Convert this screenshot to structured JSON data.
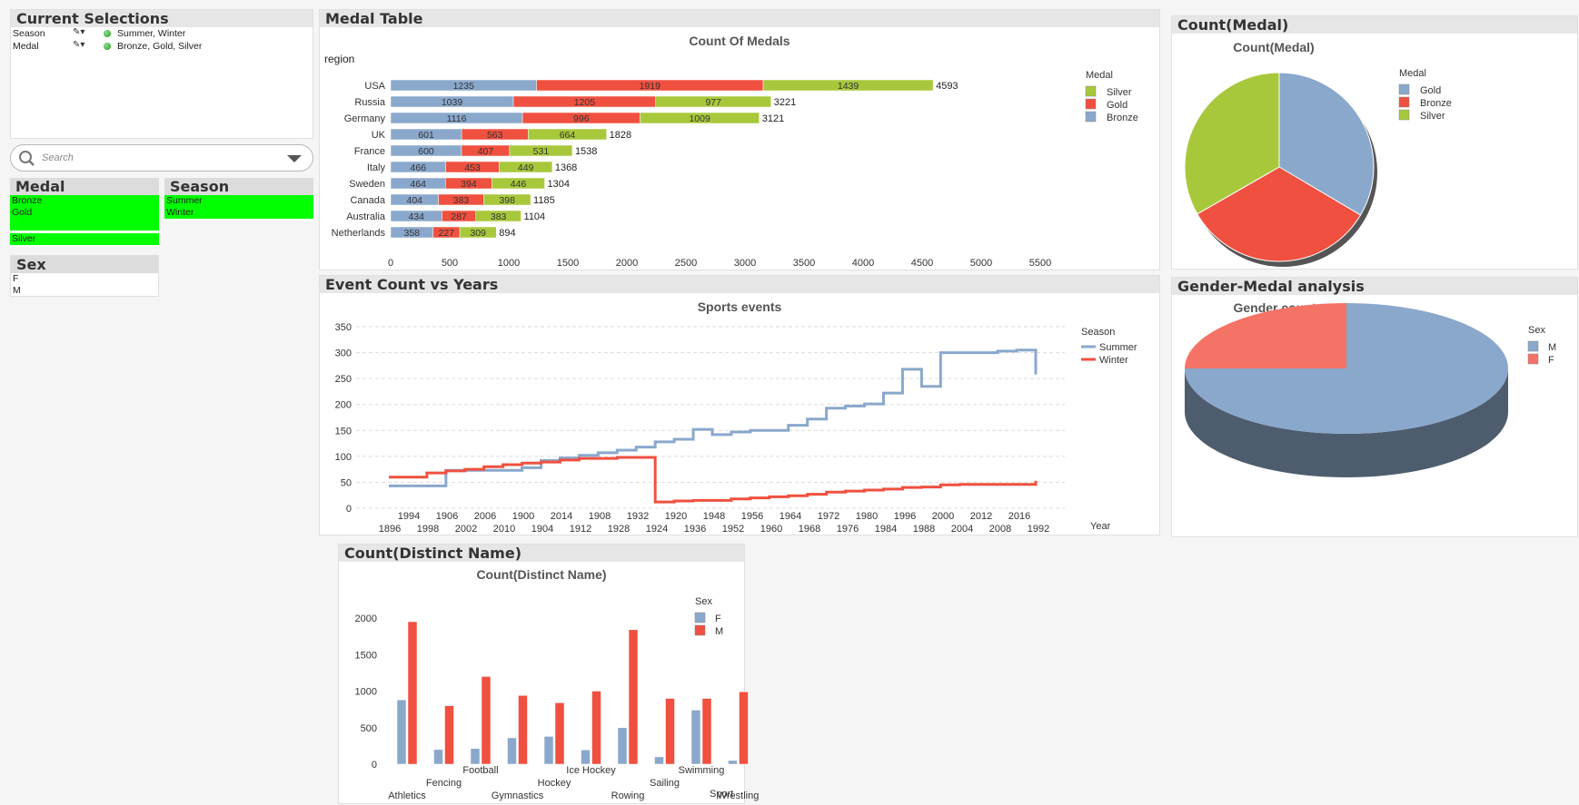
{
  "current_selections": {
    "title": "Current Selections",
    "rows": [
      {
        "field": "Season",
        "value": "Summer, Winter"
      },
      {
        "field": "Medal",
        "value": "Bronze, Gold, Silver"
      }
    ]
  },
  "search": {
    "placeholder": "Search",
    "icon": "magnifier-icon"
  },
  "listboxes": {
    "medal": {
      "title": "Medal",
      "items": [
        "Bronze",
        "Gold",
        "",
        "Silver"
      ],
      "selected": [
        true,
        true,
        false,
        true
      ]
    },
    "season": {
      "title": "Season",
      "items": [
        "Summer",
        "Winter"
      ],
      "selected": [
        true,
        true
      ]
    },
    "sex": {
      "title": "Sex",
      "items": [
        "F",
        "M"
      ],
      "selected": [
        false,
        false
      ]
    }
  },
  "colors": {
    "blue": "#8aa8cc",
    "red": "#f0503f",
    "green": "#a8c83c",
    "selection": "#00ff00"
  },
  "panels": {
    "medal_table": "Medal Table",
    "event_count": "Event Count vs Years",
    "count_medal": "Count(Medal)",
    "gender_medal": "Gender-Medal analysis",
    "distinct_name": "Count(Distinct Name)"
  },
  "chart_data": [
    {
      "id": "medals",
      "type": "bar",
      "orientation": "horizontal",
      "stacked": true,
      "title": "Count Of Medals",
      "dimension_label": "region",
      "categories": [
        "USA",
        "Russia",
        "Germany",
        "UK",
        "France",
        "Italy",
        "Sweden",
        "Canada",
        "Australia",
        "Netherlands"
      ],
      "series": [
        {
          "name": "Bronze",
          "values": [
            1235,
            1039,
            1116,
            601,
            600,
            466,
            464,
            404,
            434,
            358
          ]
        },
        {
          "name": "Gold",
          "values": [
            1919,
            1205,
            996,
            563,
            407,
            453,
            394,
            383,
            287,
            227
          ]
        },
        {
          "name": "Silver",
          "values": [
            1439,
            977,
            1009,
            664,
            531,
            449,
            446,
            398,
            383,
            309
          ]
        }
      ],
      "totals": [
        4593,
        3221,
        3121,
        1828,
        1538,
        1368,
        1304,
        1185,
        1104,
        894
      ],
      "xlim": [
        0,
        5500
      ],
      "xticks": [
        0,
        500,
        1000,
        1500,
        2000,
        2500,
        3000,
        3500,
        4000,
        4500,
        5000,
        5500
      ],
      "legend_title": "Medal",
      "legend": [
        "Silver",
        "Gold",
        "Bronze"
      ],
      "legend_position": "right"
    },
    {
      "id": "events",
      "type": "line",
      "title": "Sports events",
      "xlabel": "Year",
      "x_tick_labels_upper": [
        "1994",
        "1906",
        "2006",
        "1900",
        "2014",
        "1908",
        "1932",
        "1920",
        "1948",
        "1956",
        "1964",
        "1972",
        "1980",
        "1996",
        "2000",
        "2012",
        "2016"
      ],
      "x_tick_labels_lower": [
        "1896",
        "1998",
        "2002",
        "2010",
        "1904",
        "1912",
        "1928",
        "1924",
        "1936",
        "1952",
        "1960",
        "1968",
        "1976",
        "1984",
        "1988",
        "2004",
        "2008",
        "1992"
      ],
      "ylim": [
        0,
        350
      ],
      "yticks": [
        0,
        50,
        100,
        150,
        200,
        250,
        300,
        350
      ],
      "grid": true,
      "legend_title": "Season",
      "legend_position": "right",
      "series": [
        {
          "name": "Summer",
          "values": [
            43,
            43,
            43,
            73,
            73,
            73,
            73,
            78,
            92,
            97,
            102,
            107,
            112,
            118,
            128,
            133,
            152,
            142,
            147,
            150,
            150,
            160,
            172,
            193,
            197,
            201,
            222,
            268,
            235,
            300,
            300,
            300,
            303,
            305,
            258
          ]
        },
        {
          "name": "Winter",
          "values": [
            60,
            60,
            68,
            72,
            75,
            80,
            84,
            87,
            89,
            93,
            96,
            96,
            98,
            98,
            12,
            14,
            15,
            15,
            18,
            20,
            22,
            24,
            27,
            31,
            33,
            35,
            37,
            40,
            41,
            45,
            46,
            46,
            46,
            46,
            53
          ]
        }
      ]
    },
    {
      "id": "count_medal",
      "type": "pie",
      "title": "Count(Medal)",
      "legend_title": "Medal",
      "legend": [
        "Gold",
        "Bronze",
        "Silver"
      ],
      "legend_position": "right",
      "values": [
        33.5,
        33.2,
        33.3
      ]
    },
    {
      "id": "gender",
      "type": "pie",
      "title": "Gender count",
      "legend_title": "Sex",
      "legend": [
        "M",
        "F"
      ],
      "legend_position": "right",
      "values": [
        75,
        25
      ]
    },
    {
      "id": "distinct",
      "type": "bar",
      "title": "Count(Distinct Name)",
      "xlabel": "Sport",
      "legend_title": "Sex",
      "legend_position": "right",
      "categories": [
        "Athletics",
        "Fencing",
        "Football",
        "Gymnastics",
        "Hockey",
        "Ice Hockey",
        "Rowing",
        "Sailing",
        "Swimming",
        "Wrestling"
      ],
      "series": [
        {
          "name": "F",
          "values": [
            880,
            200,
            215,
            360,
            380,
            195,
            500,
            100,
            740,
            50
          ]
        },
        {
          "name": "M",
          "values": [
            1950,
            800,
            1200,
            940,
            840,
            1000,
            1840,
            900,
            900,
            990
          ]
        }
      ],
      "ylim": [
        0,
        2200
      ],
      "yticks": [
        0,
        500,
        1000,
        1500,
        2000
      ]
    }
  ]
}
